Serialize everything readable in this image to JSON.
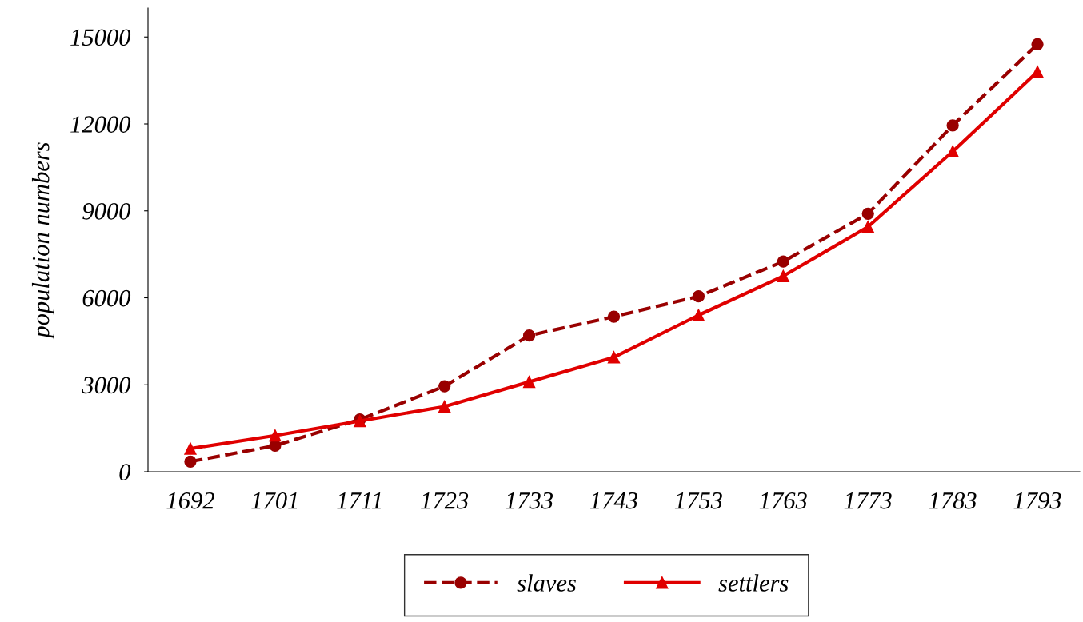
{
  "chart_data": {
    "type": "line",
    "ylabel": "population numbers",
    "categories": [
      "1692",
      "1701",
      "1711",
      "1723",
      "1733",
      "1743",
      "1753",
      "1763",
      "1773",
      "1783",
      "1793"
    ],
    "series": [
      {
        "name": "slaves",
        "color": "#990000",
        "marker": "circle",
        "line_style": "dashed",
        "values": [
          350,
          900,
          1800,
          2950,
          4700,
          5350,
          6050,
          7250,
          8900,
          11950,
          14750
        ]
      },
      {
        "name": "settlers",
        "color": "#e00000",
        "marker": "triangle",
        "line_style": "solid",
        "values": [
          800,
          1250,
          1750,
          2250,
          3100,
          3950,
          5400,
          6750,
          8450,
          11050,
          13800
        ]
      }
    ],
    "ylim": [
      0,
      16000
    ],
    "yticks": [
      0,
      3000,
      6000,
      9000,
      12000,
      15000
    ],
    "grid": false,
    "legend": "bottom"
  }
}
